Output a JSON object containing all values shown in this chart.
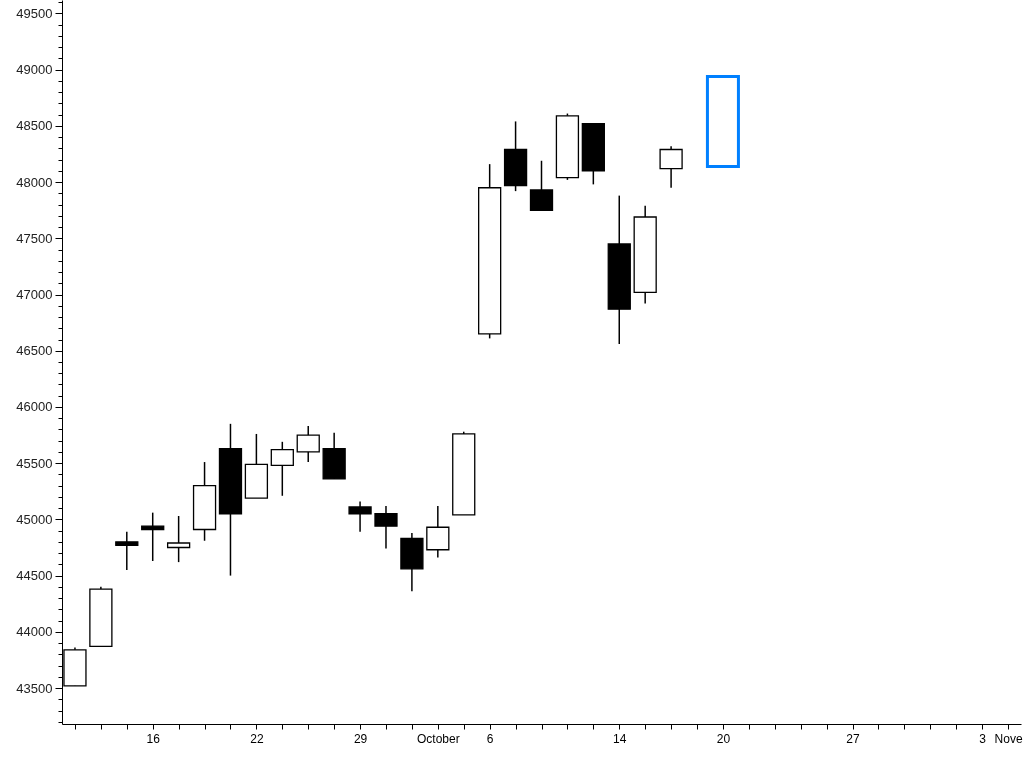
{
  "chart_data": {
    "type": "candlestick",
    "categories": [
      null,
      null,
      null,
      "16",
      null,
      null,
      null,
      "22",
      null,
      null,
      null,
      "29",
      null,
      null,
      "October",
      null,
      "6",
      null,
      null,
      null,
      null,
      "14",
      null,
      null,
      null,
      "20",
      null,
      null,
      null,
      null,
      "27",
      null,
      null,
      null,
      null,
      "3",
      "Nove"
    ],
    "ylim": [
      43180,
      49620
    ],
    "yticks": [
      {
        "value": 43200,
        "label": null
      },
      {
        "value": 43300,
        "label": null
      },
      {
        "value": 43400,
        "label": null
      },
      43500,
      {
        "value": 43600,
        "label": null
      },
      {
        "value": 43700,
        "label": null
      },
      {
        "value": 43800,
        "label": null
      },
      {
        "value": 43900,
        "label": null
      },
      44000,
      {
        "value": 44100,
        "label": null
      },
      {
        "value": 44200,
        "label": null
      },
      {
        "value": 44300,
        "label": null
      },
      {
        "value": 44400,
        "label": null
      },
      44500,
      {
        "value": 44600,
        "label": null
      },
      {
        "value": 44700,
        "label": null
      },
      {
        "value": 44800,
        "label": null
      },
      {
        "value": 44900,
        "label": null
      },
      45000,
      {
        "value": 45100,
        "label": null
      },
      {
        "value": 45200,
        "label": null
      },
      {
        "value": 45300,
        "label": null
      },
      {
        "value": 45400,
        "label": null
      },
      45500,
      {
        "value": 45600,
        "label": null
      },
      {
        "value": 45700,
        "label": null
      },
      {
        "value": 45800,
        "label": null
      },
      {
        "value": 45900,
        "label": null
      },
      46000,
      {
        "value": 46100,
        "label": null
      },
      {
        "value": 46200,
        "label": null
      },
      {
        "value": 46300,
        "label": null
      },
      {
        "value": 46400,
        "label": null
      },
      46500,
      {
        "value": 46600,
        "label": null
      },
      {
        "value": 46700,
        "label": null
      },
      {
        "value": 46800,
        "label": null
      },
      {
        "value": 46900,
        "label": null
      },
      47000,
      {
        "value": 47100,
        "label": null
      },
      {
        "value": 47200,
        "label": null
      },
      {
        "value": 47300,
        "label": null
      },
      {
        "value": 47400,
        "label": null
      },
      47500,
      {
        "value": 47600,
        "label": null
      },
      {
        "value": 47700,
        "label": null
      },
      {
        "value": 47800,
        "label": null
      },
      {
        "value": 47900,
        "label": null
      },
      48000,
      {
        "value": 48100,
        "label": null
      },
      {
        "value": 48200,
        "label": null
      },
      {
        "value": 48300,
        "label": null
      },
      {
        "value": 48400,
        "label": null
      },
      48500,
      {
        "value": 48600,
        "label": null
      },
      {
        "value": 48700,
        "label": null
      },
      {
        "value": 48800,
        "label": null
      },
      {
        "value": 48900,
        "label": null
      },
      49000,
      {
        "value": 49100,
        "label": null
      },
      {
        "value": 49200,
        "label": null
      },
      {
        "value": 49300,
        "label": null
      },
      {
        "value": 49400,
        "label": null
      },
      49500,
      {
        "value": 49600,
        "label": null
      }
    ],
    "series": [
      {
        "color": "#000000",
        "ohlc": [
          [
            43520,
            43860,
            43520,
            43840
          ],
          [
            43870,
            44400,
            43870,
            44380
          ],
          [
            44800,
            44890,
            44550,
            44770
          ],
          [
            44940,
            45060,
            44630,
            44910
          ],
          [
            44750,
            45030,
            44620,
            44790
          ],
          [
            44910,
            45510,
            44810,
            45300
          ],
          [
            45630,
            45850,
            44500,
            45050
          ],
          [
            45190,
            45760,
            45190,
            45490
          ],
          [
            45480,
            45690,
            45210,
            45620
          ],
          [
            45600,
            45830,
            45510,
            45750
          ],
          [
            45630,
            45770,
            45360,
            45360
          ],
          [
            45110,
            45160,
            44890,
            45050
          ],
          [
            45050,
            45120,
            44740,
            44940
          ],
          [
            44830,
            44880,
            44360,
            44560
          ],
          [
            44730,
            45120,
            44660,
            44930
          ],
          [
            45040,
            45780,
            45040,
            45760
          ],
          [
            46650,
            48160,
            46610,
            47950
          ],
          [
            48290,
            48540,
            47920,
            47970
          ],
          [
            47930,
            48190,
            47750,
            47750
          ],
          [
            48040,
            48610,
            48020,
            48590
          ],
          [
            48520,
            48520,
            47980,
            48100
          ],
          [
            47450,
            47880,
            46560,
            46870
          ],
          [
            47020,
            47790,
            46920,
            47690
          ],
          [
            48120,
            48320,
            47950,
            48290
          ],
          null,
          null,
          null,
          null,
          null,
          null,
          null,
          null,
          null,
          null,
          null,
          null,
          null
        ]
      },
      {
        "color": "#0080ff",
        "ohlc": [
          null,
          null,
          null,
          null,
          null,
          null,
          null,
          null,
          null,
          null,
          null,
          null,
          null,
          null,
          null,
          null,
          null,
          null,
          null,
          null,
          null,
          null,
          null,
          null,
          null,
          [
            48140,
            48940,
            48140,
            48940
          ],
          null,
          null,
          null,
          null,
          null,
          null,
          null,
          null,
          null,
          null,
          null
        ]
      }
    ]
  }
}
